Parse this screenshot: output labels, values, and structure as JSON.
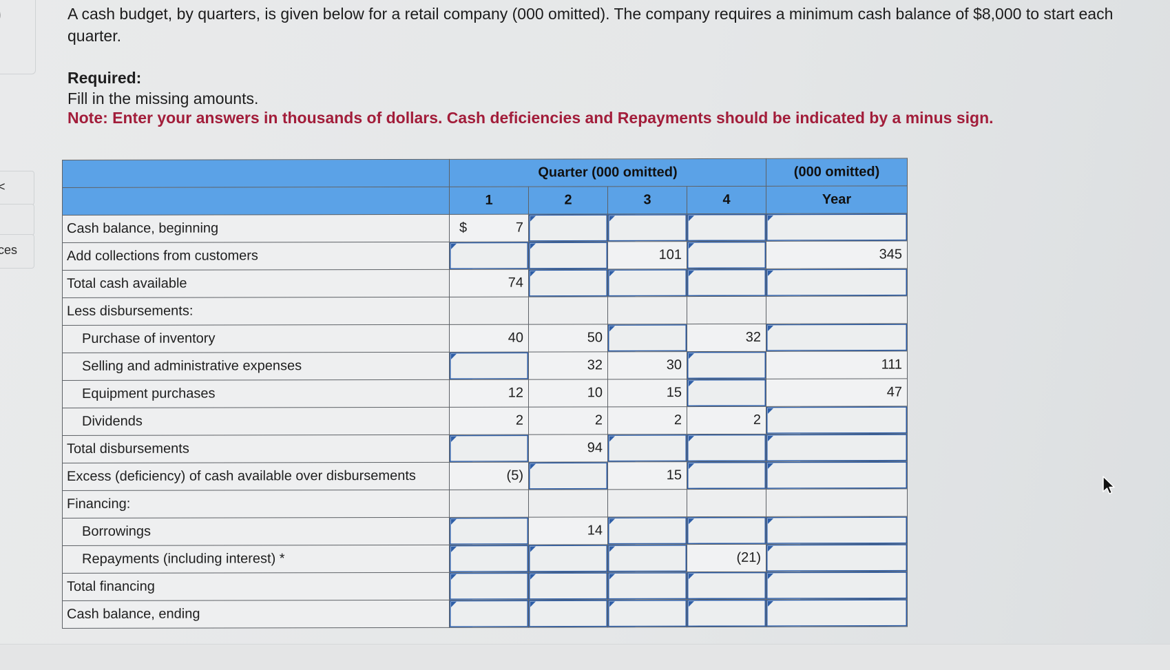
{
  "side": {
    "brace": ")",
    "item1": "<",
    "item2": "ces"
  },
  "intro": "A cash budget, by quarters, is given below for a retail company (000 omitted). The company requires a minimum cash balance of $8,000 to start each quarter.",
  "required_heading": "Required:",
  "required_text": "Fill in the missing amounts.",
  "note": "Note: Enter your answers in thousands of dollars. Cash deficiencies and Repayments should be indicated by a minus sign.",
  "table": {
    "header_quarter": "Quarter (000 omitted)",
    "header_year_top": "(000 omitted)",
    "quarters": [
      "1",
      "2",
      "3",
      "4"
    ],
    "year_label": "Year",
    "rows": {
      "r0": {
        "label": "Cash balance, beginning",
        "q1_prefix": "$",
        "q1": "7"
      },
      "r1": {
        "label": "Add collections from customers",
        "q3": "101",
        "year": "345"
      },
      "r2": {
        "label": "Total cash available",
        "q1": "74"
      },
      "r3": {
        "label": "Less disbursements:"
      },
      "r4": {
        "label": "Purchase of inventory",
        "q1": "40",
        "q2": "50",
        "q4": "32"
      },
      "r5": {
        "label": "Selling and administrative expenses",
        "q2": "32",
        "q3": "30",
        "year": "111"
      },
      "r6": {
        "label": "Equipment purchases",
        "q1": "12",
        "q2": "10",
        "q3": "15",
        "year": "47"
      },
      "r7": {
        "label": "Dividends",
        "q1": "2",
        "q2": "2",
        "q3": "2",
        "q4": "2"
      },
      "r8": {
        "label": "Total disbursements",
        "q2": "94"
      },
      "r9": {
        "label": "Excess (deficiency) of cash available over disbursements",
        "q1": "(5)",
        "q3": "15"
      },
      "r10": {
        "label": "Financing:"
      },
      "r11": {
        "label": "Borrowings",
        "q2": "14"
      },
      "r12": {
        "label": "Repayments (including interest) *",
        "q4": "(21)"
      },
      "r13": {
        "label": "Total financing"
      },
      "r14": {
        "label": "Cash balance, ending"
      }
    }
  }
}
